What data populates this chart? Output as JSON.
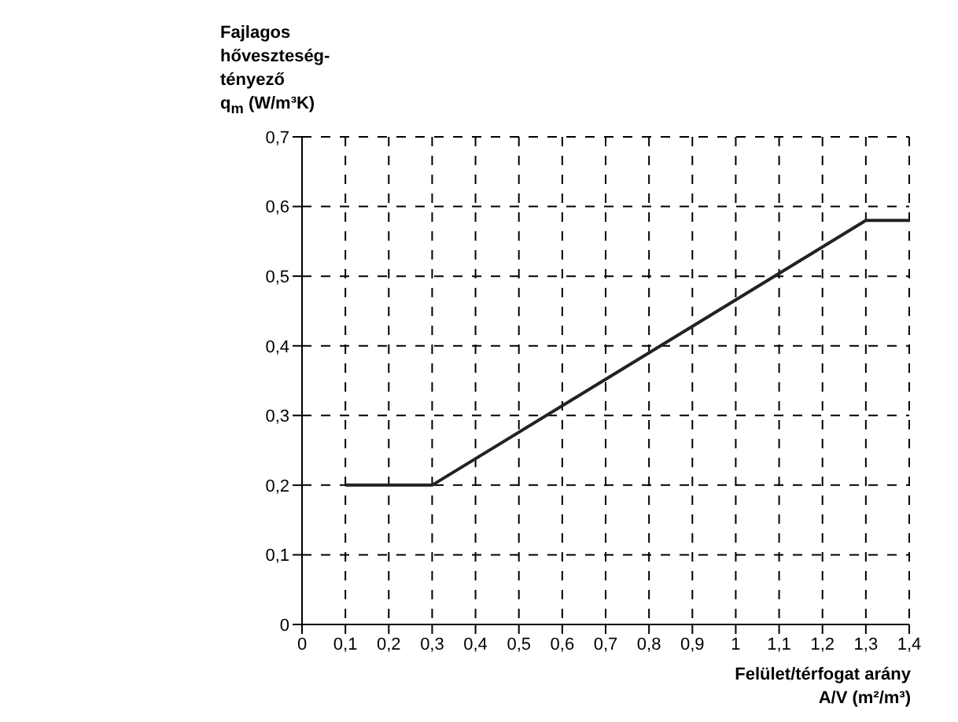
{
  "chart_data": {
    "type": "line",
    "xlabel": "Felület/térfogat arány\nA/V (m²/m³)",
    "ylabel": "Fajlagos\nhőveszteség-\ntényező\nq$_{m}$ (W/m³K)",
    "x": [
      0.1,
      0.3,
      1.3,
      1.4
    ],
    "series": [
      {
        "color": "#222222",
        "values": [
          0.2,
          0.2,
          0.58,
          0.58
        ]
      }
    ],
    "xlim": [
      0,
      1.4
    ],
    "xticks": [
      0,
      {
        "value": 0.1,
        "label": "0,1"
      },
      {
        "value": 0.2,
        "label": "0,2"
      },
      {
        "value": 0.3,
        "label": "0,3"
      },
      {
        "value": 0.4,
        "label": "0,4"
      },
      {
        "value": 0.5,
        "label": "0,5"
      },
      {
        "value": 0.6,
        "label": "0,6"
      },
      {
        "value": 0.7,
        "label": "0,7"
      },
      {
        "value": 0.8,
        "label": "0,8"
      },
      {
        "value": 0.9,
        "label": "0,9"
      },
      1,
      {
        "value": 1.1,
        "label": "1,1"
      },
      {
        "value": 1.2,
        "label": "1,2"
      },
      {
        "value": 1.3,
        "label": "1,3"
      },
      {
        "value": 1.4,
        "label": "1,4"
      }
    ],
    "ylim": [
      0,
      0.7
    ],
    "yticks": [
      0,
      {
        "value": 0.1,
        "label": "0,1"
      },
      {
        "value": 0.2,
        "label": "0,2"
      },
      {
        "value": 0.3,
        "label": "0,3"
      },
      {
        "value": 0.4,
        "label": "0,4"
      },
      {
        "value": 0.5,
        "label": "0,5"
      },
      {
        "value": 0.6,
        "label": "0,6"
      },
      {
        "value": 0.7,
        "label": "0,7"
      }
    ],
    "grid": true,
    "marker": "none",
    "line_style": "solid"
  }
}
